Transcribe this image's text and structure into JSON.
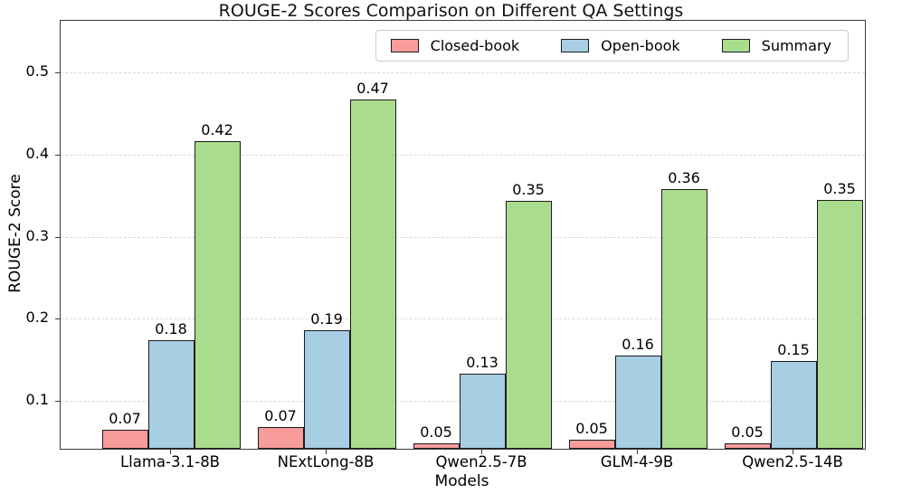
{
  "title": "ROUGE-2 Scores Comparison on Different QA Settings",
  "chart_data": {
    "type": "bar",
    "title": "ROUGE-2 Scores Comparison on Different QA Settings",
    "xlabel": "Models",
    "ylabel": "ROUGE-2 Score",
    "categories": [
      "Llama-3.1-8B",
      "NExtLong-8B",
      "Qwen2.5-7B",
      "GLM-4-9B",
      "Qwen2.5-14B"
    ],
    "series": [
      {
        "name": "Closed-book",
        "color": "#F89B9B",
        "values": [
          0.066,
          0.07,
          0.05,
          0.054,
          0.05
        ],
        "labels": [
          "0.07",
          "0.07",
          "0.05",
          "0.05",
          "0.05"
        ]
      },
      {
        "name": "Open-book",
        "color": "#A7CEE3",
        "values": [
          0.175,
          0.187,
          0.134,
          0.157,
          0.15
        ],
        "labels": [
          "0.18",
          "0.19",
          "0.13",
          "0.16",
          "0.15"
        ]
      },
      {
        "name": "Summary",
        "color": "#A9DC8D",
        "values": [
          0.417,
          0.468,
          0.345,
          0.359,
          0.346
        ],
        "labels": [
          "0.42",
          "0.47",
          "0.35",
          "0.36",
          "0.35"
        ]
      }
    ],
    "yticks": [
      0.1,
      0.2,
      0.3,
      0.4,
      0.5
    ],
    "ytick_labels": [
      "0.1",
      "0.2",
      "0.3",
      "0.4",
      "0.5"
    ],
    "ylim": [
      0.043,
      0.564
    ],
    "grid": "horizontal-dashed",
    "legend_position": "upper-right-inside",
    "bar_edge_color": "#1c1c1c",
    "spine_color": "#3a3a3a",
    "gridline_color": "#d9d9d9"
  }
}
